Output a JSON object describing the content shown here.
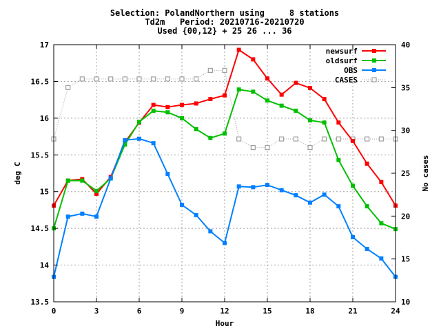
{
  "chart_data": {
    "type": "line",
    "title_lines": [
      "Selection: PolandNorthern using     8 stations",
      "Td2m   Period: 20210716-20210720",
      "Used {00,12} + 25 26 ... 36"
    ],
    "xlabel": "Hour",
    "ylabel": "deg C",
    "y2label": "No cases",
    "xlim": [
      0,
      24
    ],
    "ylim": [
      13.5,
      17
    ],
    "y2lim": [
      10,
      40
    ],
    "x_ticks": [
      "0",
      "3",
      "6",
      "9",
      "12",
      "15",
      "18",
      "21",
      "24"
    ],
    "y_ticks": [
      "13.5",
      "14",
      "14.5",
      "15",
      "15.5",
      "16",
      "16.5",
      "17"
    ],
    "y2_ticks": [
      "10",
      "15",
      "20",
      "25",
      "30",
      "35",
      "40"
    ],
    "grid": true,
    "legend_position": "top-right",
    "x": [
      0,
      1,
      2,
      3,
      4,
      5,
      6,
      7,
      8,
      9,
      10,
      11,
      12,
      13,
      14,
      15,
      16,
      17,
      18,
      19,
      20,
      21,
      22,
      23,
      24
    ],
    "series": [
      {
        "name": "newsurf",
        "color": "#ff0000",
        "axis": "left",
        "style": "solid",
        "marker": "square",
        "values": [
          14.81,
          15.15,
          15.17,
          14.97,
          15.2,
          15.67,
          15.94,
          16.18,
          16.15,
          16.18,
          16.2,
          16.26,
          16.31,
          16.93,
          16.8,
          16.54,
          16.32,
          16.48,
          16.41,
          16.26,
          15.94,
          15.69,
          15.38,
          15.13,
          14.81
        ]
      },
      {
        "name": "oldsurf",
        "color": "#00c000",
        "axis": "left",
        "style": "solid",
        "marker": "square",
        "values": [
          14.5,
          15.15,
          15.15,
          15.01,
          15.18,
          15.64,
          15.95,
          16.1,
          16.08,
          16.0,
          15.85,
          15.73,
          15.79,
          16.39,
          16.36,
          16.24,
          16.17,
          16.1,
          15.97,
          15.94,
          15.43,
          15.08,
          14.8,
          14.57,
          14.49
        ]
      },
      {
        "name": "OBS",
        "color": "#0080ff",
        "axis": "left",
        "style": "solid",
        "marker": "square",
        "values": [
          13.84,
          14.66,
          14.7,
          14.66,
          15.18,
          15.7,
          15.72,
          15.66,
          15.24,
          14.82,
          14.68,
          14.46,
          14.3,
          15.07,
          15.06,
          15.09,
          15.02,
          14.95,
          14.85,
          14.96,
          14.8,
          14.38,
          14.22,
          14.09,
          13.84
        ]
      },
      {
        "name": "CASES",
        "color": "#a0a0a0",
        "axis": "right",
        "style": "dotted",
        "marker": "open-square",
        "values": [
          29,
          35,
          36,
          36,
          36,
          36,
          36,
          36,
          36,
          36,
          36,
          37,
          37,
          29,
          28,
          28,
          29,
          29,
          28,
          29,
          29,
          29,
          29,
          29,
          29
        ]
      }
    ]
  }
}
